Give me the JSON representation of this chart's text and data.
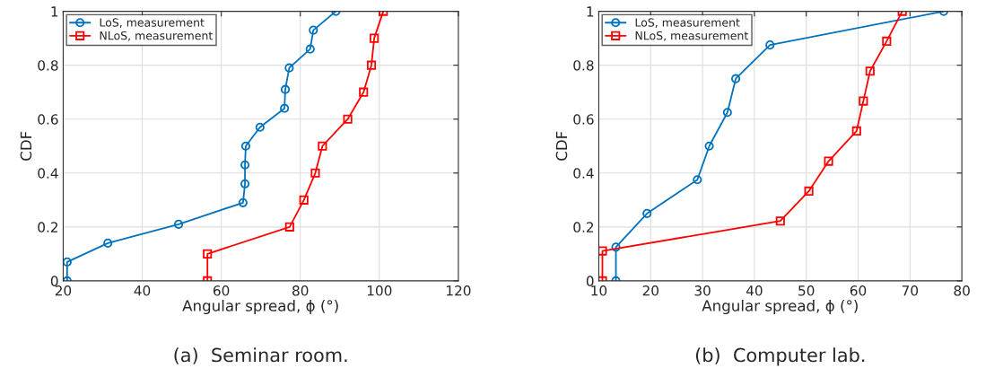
{
  "chart_data": [
    {
      "type": "line",
      "xlabel": "Angular spread, ϕ (°)",
      "ylabel": "CDF",
      "xlim": [
        20,
        120
      ],
      "xticks": [
        20,
        40,
        60,
        80,
        100,
        120
      ],
      "ylim": [
        0,
        1
      ],
      "yticks": [
        0,
        0.2,
        0.4,
        0.6,
        0.8,
        1
      ],
      "grid": true,
      "legend": "top left",
      "annotations": [
        "(a)  Seminar room."
      ],
      "series": [
        {
          "name": "LoS, measurement",
          "color": "#0072bd",
          "marker": "circle",
          "x": [
            21,
            21,
            31.3,
            49.2,
            65.5,
            66,
            66,
            66.2,
            69.8,
            76,
            76.2,
            77.2,
            82.5,
            83.3,
            89
          ],
          "values": [
            0,
            0.07,
            0.14,
            0.21,
            0.29,
            0.36,
            0.43,
            0.5,
            0.57,
            0.64,
            0.71,
            0.79,
            0.86,
            0.93,
            1
          ]
        },
        {
          "name": "NLoS, measurement",
          "color": "#ff0000",
          "marker": "square",
          "x": [
            56.5,
            56.5,
            77.3,
            80.9,
            83.8,
            85.6,
            92,
            96,
            98,
            98.7,
            101
          ],
          "values": [
            0,
            0.1,
            0.2,
            0.3,
            0.4,
            0.5,
            0.6,
            0.7,
            0.8,
            0.9,
            1
          ]
        }
      ]
    },
    {
      "type": "line",
      "xlabel": "Angular spread, ϕ (°)",
      "ylabel": "CDF",
      "xlim": [
        10,
        80
      ],
      "xticks": [
        10,
        20,
        30,
        40,
        50,
        60,
        70,
        80
      ],
      "ylim": [
        0,
        1
      ],
      "yticks": [
        0,
        0.2,
        0.4,
        0.6,
        0.8,
        1
      ],
      "grid": true,
      "legend": "top left",
      "annotations": [
        "(b)  Computer lab."
      ],
      "series": [
        {
          "name": "LoS, measurement",
          "color": "#0072bd",
          "marker": "circle",
          "x": [
            13.3,
            13.3,
            19.3,
            29,
            31.3,
            34.8,
            36.4,
            43,
            76.5
          ],
          "values": [
            0,
            0.125,
            0.25,
            0.375,
            0.5,
            0.625,
            0.75,
            0.875,
            1
          ]
        },
        {
          "name": "NLoS, measurement",
          "color": "#ff0000",
          "marker": "square",
          "x": [
            10.7,
            10.7,
            45,
            50.5,
            54.3,
            59.7,
            61,
            62.3,
            65.5,
            68.5
          ],
          "values": [
            0,
            0.111,
            0.222,
            0.333,
            0.444,
            0.556,
            0.667,
            0.778,
            0.889,
            1
          ]
        }
      ]
    }
  ]
}
